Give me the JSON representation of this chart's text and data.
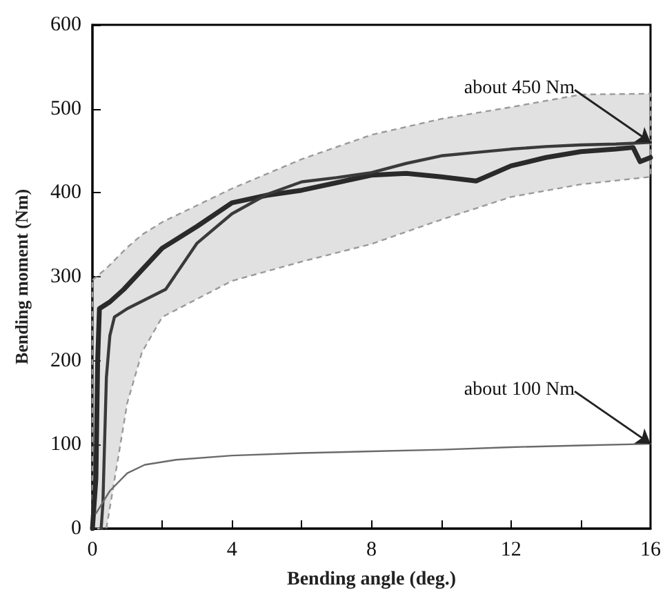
{
  "chart_data": {
    "type": "line",
    "xlabel": "Bending angle (deg.)",
    "ylabel": "Bending moment (Nm)",
    "xlim": [
      0,
      16
    ],
    "xticks": [
      0,
      {
        "value": 2,
        "label": null
      },
      4,
      {
        "value": 6,
        "label": null
      },
      8,
      {
        "value": 10,
        "label": null
      },
      12,
      {
        "value": 14,
        "label": null
      },
      16
    ],
    "ylim": [
      0,
      600
    ],
    "yticks": [
      0,
      100,
      200,
      300,
      400,
      500,
      600
    ],
    "grid": false,
    "marker": "none",
    "series": [
      {
        "color": "#9a9a9a",
        "line_style": "dashed",
        "x": [
          0,
          0.4,
          1,
          1.42,
          2,
          4,
          6,
          8,
          10,
          12,
          14,
          16
        ],
        "values": [
          null,
          null,
          null,
          null,
          null,
          null,
          null,
          null,
          null,
          null,
          null,
          null
        ],
        "lower": [
          0,
          0,
          150,
          210,
          252,
          295,
          318,
          339,
          368,
          395,
          410,
          419
        ],
        "upper": [
          296,
          310,
          335,
          350,
          365,
          405,
          440,
          469,
          488,
          502,
          517,
          518
        ]
      },
      {
        "color": "#2a2a2a",
        "line_style": "solid",
        "x": [
          0,
          0.1,
          0.15,
          0.2,
          0.5,
          0.9,
          2,
          3,
          4,
          5,
          6,
          7,
          8,
          9,
          10,
          11,
          12,
          13,
          14,
          15,
          15.5,
          15.7,
          16
        ],
        "values": [
          0,
          60,
          200,
          262,
          270,
          285,
          334,
          360,
          388,
          397,
          403,
          412,
          421,
          423,
          419,
          414,
          432,
          442,
          449,
          452,
          454,
          437,
          442
        ]
      },
      {
        "color": "#3a3a3a",
        "line_style": "solid",
        "x": [
          0.25,
          0.3,
          0.4,
          0.5,
          0.63,
          1,
          2.1,
          3,
          4,
          5,
          6,
          7,
          8,
          9,
          10,
          11,
          12,
          13,
          14,
          15,
          16
        ],
        "values": [
          0,
          30,
          180,
          230,
          252,
          262,
          285,
          340,
          375,
          398,
          413,
          418,
          424,
          435,
          444,
          448,
          452,
          455,
          457,
          458,
          460
        ]
      },
      {
        "color": "#6a6a6a",
        "line_style": "solid",
        "x": [
          0.1,
          0.5,
          1,
          1.5,
          2.4,
          4,
          6,
          8,
          10,
          12,
          14,
          16
        ],
        "values": [
          18,
          45,
          66,
          76,
          82,
          87,
          90,
          92,
          94,
          97,
          99,
          101
        ]
      }
    ],
    "annotations": [
      {
        "text": "about 450 Nm",
        "x": 16,
        "y": 460
      },
      {
        "text": "about 100 Nm",
        "x": 16,
        "y": 101
      }
    ]
  }
}
